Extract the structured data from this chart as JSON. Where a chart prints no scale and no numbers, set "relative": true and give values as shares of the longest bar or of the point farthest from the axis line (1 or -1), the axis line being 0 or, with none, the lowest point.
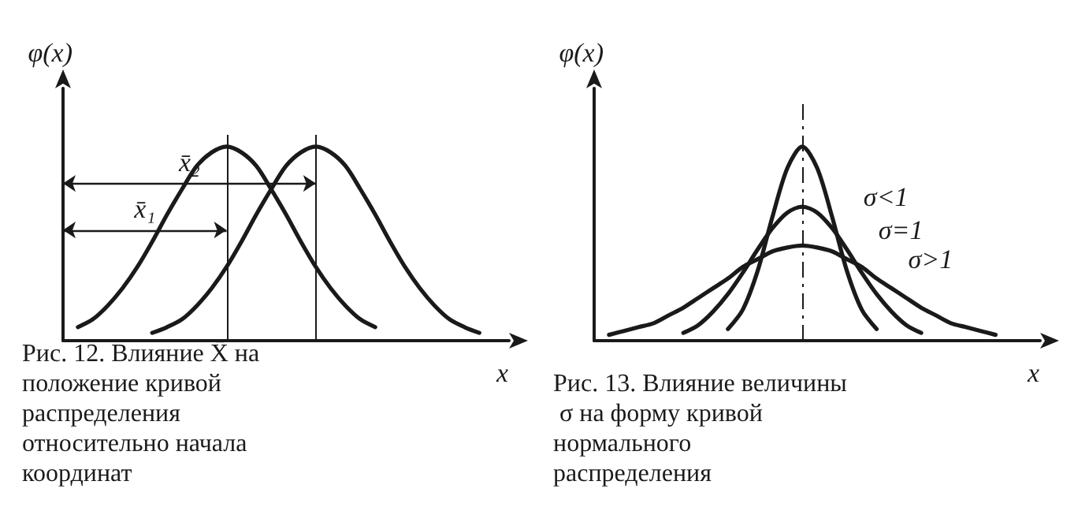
{
  "chart_data": [
    {
      "type": "line",
      "relative": true,
      "xlabel": "x",
      "ylabel": "φ(x)",
      "grid": false,
      "legend": false,
      "marker": "none",
      "line_style": "solid",
      "categories": [
        null,
        null,
        null,
        null,
        null,
        null,
        null,
        null,
        null,
        null,
        null,
        null,
        null,
        null,
        null,
        null,
        null,
        null,
        null,
        null,
        null,
        null,
        null,
        null,
        null,
        null,
        null,
        null,
        null,
        null,
        null
      ],
      "series": [
        {
          "color": "#1a1a1a",
          "values": [
            null,
            0.07,
            0.11,
            0.18,
            0.27,
            0.38,
            0.51,
            0.65,
            0.78,
            0.9,
            0.97,
            1,
            0.97,
            0.9,
            0.78,
            0.65,
            0.51,
            0.38,
            0.27,
            0.18,
            0.11,
            0.07,
            null,
            null,
            null,
            null,
            null,
            null,
            null,
            null,
            null
          ]
        },
        {
          "color": "#1a1a1a",
          "values": [
            null,
            null,
            null,
            null,
            null,
            null,
            0.04,
            0.07,
            0.11,
            0.18,
            0.27,
            0.38,
            0.51,
            0.65,
            0.78,
            0.9,
            0.97,
            1,
            0.97,
            0.9,
            0.78,
            0.65,
            0.51,
            0.38,
            0.27,
            0.18,
            0.11,
            0.07,
            0.04,
            null,
            null
          ]
        }
      ],
      "annotations": [
        "x̄₁",
        "x̄₂",
        "Рис. 12. Влияние X̄ на положение кривой распределения относительно начала координат"
      ]
    },
    {
      "type": "line",
      "relative": true,
      "xlabel": "x",
      "ylabel": "φ(x)",
      "grid": false,
      "legend": false,
      "marker": "none",
      "line_style": "solid",
      "categories": [
        null,
        null,
        null,
        null,
        null,
        null,
        null,
        null,
        null,
        null,
        null,
        null,
        null,
        null,
        null,
        null,
        null,
        null,
        null,
        null,
        null,
        null,
        null,
        null,
        null,
        null,
        null,
        null,
        null,
        null,
        null
      ],
      "series": [
        {
          "name": "σ<1",
          "color": "#1a1a1a",
          "values": [
            null,
            null,
            null,
            null,
            null,
            null,
            null,
            null,
            null,
            0.06,
            0.16,
            0.36,
            0.64,
            0.89,
            1,
            0.89,
            0.64,
            0.36,
            0.16,
            0.06,
            null,
            null,
            null,
            null,
            null,
            null,
            null,
            null,
            null,
            null,
            null
          ]
        },
        {
          "name": "σ=1",
          "color": "#1a1a1a",
          "values": [
            null,
            null,
            null,
            null,
            null,
            null,
            0.04,
            0.08,
            0.15,
            0.24,
            0.35,
            0.47,
            0.58,
            0.66,
            0.69,
            0.66,
            0.58,
            0.47,
            0.35,
            0.24,
            0.15,
            0.08,
            0.04,
            null,
            null,
            null,
            null,
            null,
            null,
            null,
            null
          ]
        },
        {
          "name": "σ>1",
          "color": "#1a1a1a",
          "values": [
            null,
            0.03,
            0.05,
            0.07,
            0.09,
            0.13,
            0.17,
            0.22,
            0.27,
            0.32,
            0.38,
            0.42,
            0.46,
            0.48,
            0.49,
            0.48,
            0.46,
            0.42,
            0.38,
            0.32,
            0.27,
            0.22,
            0.17,
            0.13,
            0.09,
            0.07,
            0.05,
            0.03,
            null,
            null,
            null
          ]
        }
      ],
      "annotations": [
        "Рис. 13. Влияние величины σ на форму кривой нормального распределения"
      ]
    }
  ]
}
